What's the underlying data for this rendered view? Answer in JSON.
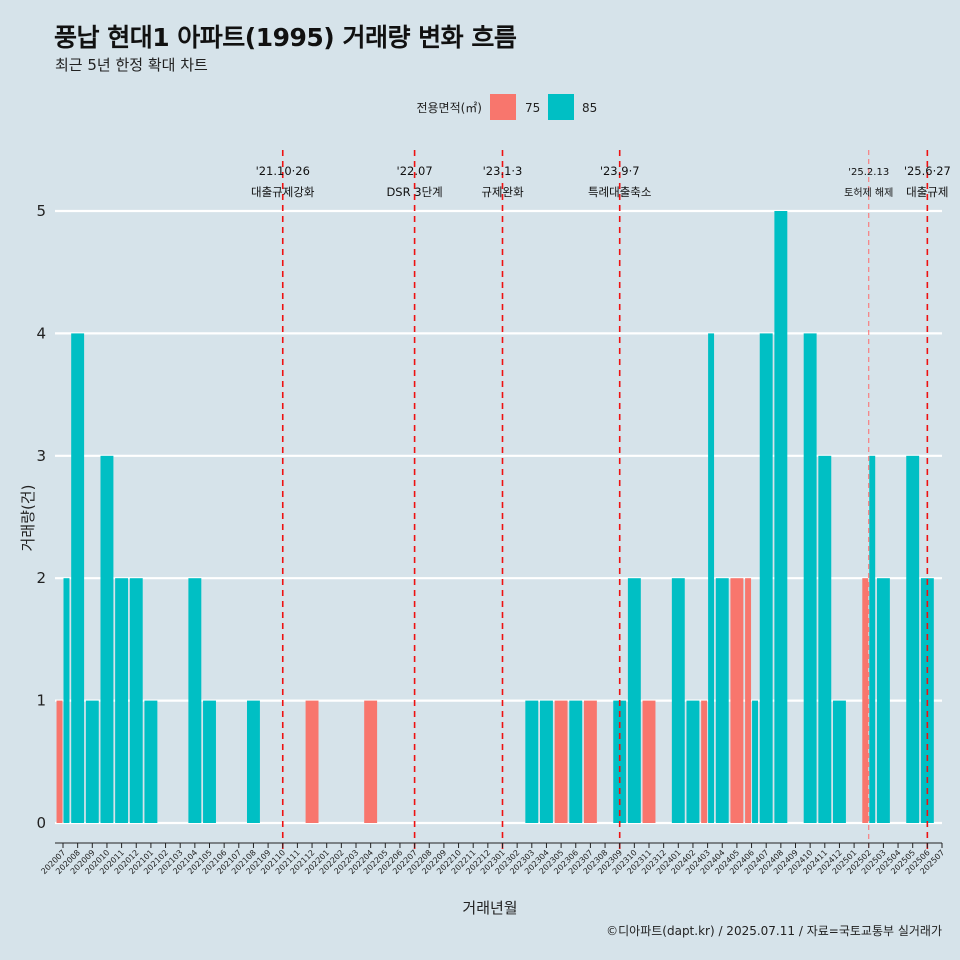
{
  "chart_data": {
    "type": "bar",
    "title": "풍납 현대1 아파트(1995) 거래량 변화 흐름",
    "subtitle": "최근 5년 한정 확대 차트",
    "xlabel": "거래년월",
    "ylabel": "거래량(건)",
    "ylim": [
      0,
      5
    ],
    "yticks": [
      0,
      1,
      2,
      3,
      4,
      5
    ],
    "caption": "©디아파트(dapt.kr) / 2025.07.11 / 자료=국토교통부 실거래가",
    "legend": {
      "title": "전용면적(㎡)",
      "placement": "top",
      "entries": [
        {
          "name": "75",
          "color": "#f8766d"
        },
        {
          "name": "85",
          "color": "#00bfc4"
        }
      ]
    },
    "categories": [
      "202007",
      "202008",
      "202009",
      "202010",
      "202011",
      "202012",
      "202101",
      "202102",
      "202103",
      "202104",
      "202105",
      "202106",
      "202107",
      "202108",
      "202109",
      "202110",
      "202111",
      "202112",
      "202201",
      "202202",
      "202203",
      "202204",
      "202205",
      "202206",
      "202207",
      "202208",
      "202209",
      "202210",
      "202211",
      "202212",
      "202301",
      "202302",
      "202303",
      "202304",
      "202305",
      "202306",
      "202307",
      "202308",
      "202309",
      "202310",
      "202311",
      "202312",
      "202401",
      "202402",
      "202403",
      "202404",
      "202405",
      "202406",
      "202407",
      "202408",
      "202409",
      "202410",
      "202411",
      "202412",
      "202501",
      "202502",
      "202503",
      "202504",
      "202505",
      "202506",
      "202507"
    ],
    "series": [
      {
        "name": "75",
        "color": "#f8766d",
        "values": [
          1,
          0,
          0,
          0,
          0,
          0,
          0,
          0,
          0,
          0,
          0,
          0,
          0,
          0,
          0,
          0,
          0,
          1,
          0,
          0,
          0,
          1,
          0,
          0,
          0,
          0,
          0,
          0,
          0,
          0,
          0,
          0,
          0,
          0,
          1,
          0,
          1,
          0,
          0,
          0,
          1,
          0,
          0,
          0,
          1,
          0,
          2,
          2,
          0,
          0,
          0,
          0,
          0,
          0,
          0,
          2,
          0,
          0,
          0,
          0,
          0
        ]
      },
      {
        "name": "85",
        "color": "#00bfc4",
        "values": [
          2,
          4,
          1,
          3,
          2,
          2,
          1,
          0,
          0,
          2,
          1,
          0,
          0,
          1,
          0,
          0,
          0,
          0,
          0,
          0,
          0,
          0,
          0,
          0,
          0,
          0,
          0,
          0,
          0,
          0,
          0,
          0,
          1,
          1,
          0,
          1,
          0,
          0,
          1,
          2,
          0,
          0,
          2,
          1,
          4,
          2,
          0,
          1,
          4,
          5,
          0,
          4,
          3,
          1,
          0,
          3,
          2,
          0,
          3,
          2,
          0
        ]
      }
    ],
    "annotations": [
      {
        "date": "202110",
        "line1": "'21.10·26",
        "line2": "대출규제강화",
        "style": "major"
      },
      {
        "date": "202207",
        "line1": "'22.07",
        "line2": "DSR 3단계",
        "style": "major"
      },
      {
        "date": "202301",
        "line1": "'23.1·3",
        "line2": "규제완화",
        "style": "major"
      },
      {
        "date": "202309",
        "line1": "'23.9·7",
        "line2": "특례대출축소",
        "style": "major"
      },
      {
        "date": "202502",
        "line1": "'25.2.13",
        "line2": "토허제 해제",
        "style": "minor"
      },
      {
        "date": "202506",
        "line1": "'25.6·27",
        "line2": "대출규제",
        "style": "major"
      }
    ]
  }
}
